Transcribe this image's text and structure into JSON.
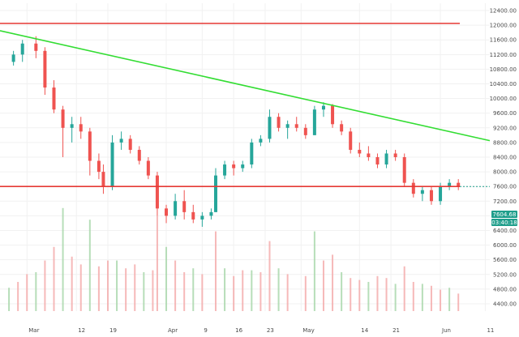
{
  "chart_data": {
    "type": "candlestick",
    "yaxis": {
      "ticks": [
        12400,
        12000,
        11600,
        11200,
        10800,
        10400,
        10000,
        9600,
        9200,
        8800,
        8400,
        8000,
        7600,
        7200,
        6800,
        6400,
        6000,
        5600,
        5200,
        4800,
        4400
      ],
      "tick_labels": [
        "12400.00",
        "12000.00",
        "11600.00",
        "11200.00",
        "10800.00",
        "10400.00",
        "10000.00",
        "9600.00",
        "9200.00",
        "8800.00",
        "8400.00",
        "8000.00",
        "7600.00",
        "7200.00",
        "6800.00",
        "6400.00",
        "6000.00",
        "5600.00",
        "5200.00",
        "4800.00",
        "4400.00"
      ],
      "range": [
        4200,
        12600
      ]
    },
    "xaxis": {
      "tick_labels": [
        "Mar",
        "12",
        "19",
        "Apr",
        "9",
        "16",
        "23",
        "May",
        "14",
        "21",
        "Jun",
        "11"
      ]
    },
    "price_series": [
      [
        "Feb 26",
        11000,
        11300,
        10900,
        11200
      ],
      [
        "Feb 28",
        11200,
        11600,
        11000,
        11500
      ],
      [
        "Mar 3",
        11500,
        11700,
        11100,
        11300
      ],
      [
        "Mar 5",
        11300,
        11400,
        10100,
        10300
      ],
      [
        "Mar 7",
        10300,
        10500,
        9600,
        9700
      ],
      [
        "Mar 9",
        9700,
        9800,
        8400,
        9200
      ],
      [
        "Mar 11",
        9200,
        9500,
        8800,
        9300
      ],
      [
        "Mar 13",
        9300,
        9500,
        8900,
        9100
      ],
      [
        "Mar 15",
        9100,
        9200,
        7900,
        8300
      ],
      [
        "Mar 17",
        8300,
        8500,
        7800,
        8000
      ],
      [
        "Mar 18",
        8000,
        8200,
        7400,
        7600
      ],
      [
        "Mar 20",
        7600,
        9000,
        7500,
        8800
      ],
      [
        "Mar 22",
        8800,
        9100,
        8600,
        8900
      ],
      [
        "Mar 24",
        8900,
        9000,
        8500,
        8600
      ],
      [
        "Mar 26",
        8600,
        8700,
        8200,
        8300
      ],
      [
        "Mar 28",
        8300,
        8400,
        7800,
        7900
      ],
      [
        "Mar 30",
        7900,
        8000,
        6800,
        7000
      ],
      [
        "Apr 1",
        7000,
        7100,
        6600,
        6800
      ],
      [
        "Apr 3",
        6800,
        7400,
        6700,
        7200
      ],
      [
        "Apr 5",
        7200,
        7500,
        6700,
        6900
      ],
      [
        "Apr 7",
        6900,
        7100,
        6600,
        6700
      ],
      [
        "Apr 9",
        6700,
        6900,
        6500,
        6800
      ],
      [
        "Apr 11",
        6800,
        7000,
        6700,
        6900
      ],
      [
        "Apr 12",
        6900,
        8100,
        6900,
        7900
      ],
      [
        "Apr 14",
        7900,
        8300,
        7800,
        8200
      ],
      [
        "Apr 16",
        8200,
        8300,
        7900,
        8100
      ],
      [
        "Apr 18",
        8100,
        8300,
        8000,
        8200
      ],
      [
        "Apr 20",
        8200,
        8900,
        8100,
        8800
      ],
      [
        "Apr 22",
        8800,
        9000,
        8700,
        8900
      ],
      [
        "Apr 24",
        8900,
        9700,
        8800,
        9500
      ],
      [
        "Apr 26",
        9500,
        9600,
        9100,
        9200
      ],
      [
        "Apr 28",
        9200,
        9400,
        8900,
        9300
      ],
      [
        "Apr 30",
        9300,
        9500,
        9100,
        9200
      ],
      [
        "May 2",
        9200,
        9300,
        8900,
        9000
      ],
      [
        "May 4",
        9000,
        9800,
        9000,
        9700
      ],
      [
        "May 6",
        9700,
        9900,
        9500,
        9800
      ],
      [
        "May 8",
        9800,
        9850,
        9200,
        9300
      ],
      [
        "May 10",
        9300,
        9400,
        9000,
        9100
      ],
      [
        "May 12",
        9100,
        9200,
        8500,
        8600
      ],
      [
        "May 14",
        8600,
        8800,
        8400,
        8500
      ],
      [
        "May 16",
        8500,
        8700,
        8300,
        8400
      ],
      [
        "May 18",
        8400,
        8500,
        8100,
        8200
      ],
      [
        "May 20",
        8200,
        8600,
        8100,
        8500
      ],
      [
        "May 22",
        8500,
        8600,
        8300,
        8400
      ],
      [
        "May 24",
        8400,
        8500,
        7600,
        7700
      ],
      [
        "May 26",
        7700,
        7800,
        7300,
        7400
      ],
      [
        "May 28",
        7400,
        7600,
        7200,
        7500
      ],
      [
        "May 30",
        7500,
        7600,
        7100,
        7200
      ],
      [
        "Jun 1",
        7200,
        7700,
        7100,
        7600
      ],
      [
        "Jun 3",
        7600,
        7800,
        7500,
        7700
      ],
      [
        "Jun 5",
        7700,
        7800,
        7500,
        7600
      ]
    ],
    "horizontal_lines": [
      {
        "name": "resistance",
        "value": 12050,
        "color": "#e53935"
      },
      {
        "name": "support",
        "value": 7600,
        "color": "#e53935"
      }
    ],
    "trendline": {
      "from": [
        "Feb 23",
        11850
      ],
      "to": [
        "Jun 12",
        8850
      ],
      "color": "#33dd33"
    },
    "current_price_label": "7604.68",
    "countdown_label": "03:40:18",
    "colors": {
      "up": "#26a69a",
      "down": "#ef5350",
      "volume_up": "#a5d6a7",
      "volume_down": "#f4a7a7",
      "grid": "#f1f1f1",
      "axis_text": "#4a4a4a",
      "current_price_bg": "#1f9e8b"
    },
    "volume_axis_range": [
      0,
      9000
    ],
    "volume_series": [
      [
        "Feb 25",
        1200
      ],
      [
        "Feb 27",
        1500
      ],
      [
        "Mar 1",
        1900
      ],
      [
        "Mar 3",
        2000
      ],
      [
        "Mar 5",
        2600
      ],
      [
        "Mar 7",
        3300
      ],
      [
        "Mar 9",
        5300
      ],
      [
        "Mar 11",
        2800
      ],
      [
        "Mar 13",
        2400
      ],
      [
        "Mar 15",
        4700
      ],
      [
        "Mar 17",
        2300
      ],
      [
        "Mar 19",
        2600
      ],
      [
        "Mar 21",
        2600
      ],
      [
        "Mar 23",
        2200
      ],
      [
        "Mar 25",
        2400
      ],
      [
        "Mar 27",
        2000
      ],
      [
        "Mar 29",
        2100
      ],
      [
        "Mar 30",
        4900
      ],
      [
        "Apr 1",
        3300
      ],
      [
        "Apr 3",
        2600
      ],
      [
        "Apr 5",
        2000
      ],
      [
        "Apr 7",
        2200
      ],
      [
        "Apr 9",
        1900
      ],
      [
        "Apr 12",
        4100
      ],
      [
        "Apr 14",
        2200
      ],
      [
        "Apr 16",
        1800
      ],
      [
        "Apr 18",
        2100
      ],
      [
        "Apr 20",
        2100
      ],
      [
        "Apr 22",
        2000
      ],
      [
        "Apr 24",
        3600
      ],
      [
        "Apr 26",
        2200
      ],
      [
        "Apr 28",
        1900
      ],
      [
        "May 2",
        1800
      ],
      [
        "May 4",
        4100
      ],
      [
        "May 6",
        2600
      ],
      [
        "May 8",
        2900
      ],
      [
        "May 10",
        2000
      ],
      [
        "May 12",
        1700
      ],
      [
        "May 14",
        1600
      ],
      [
        "May 16",
        1500
      ],
      [
        "May 18",
        1800
      ],
      [
        "May 20",
        1700
      ],
      [
        "May 22",
        1400
      ],
      [
        "May 24",
        2300
      ],
      [
        "May 26",
        1500
      ],
      [
        "May 28",
        1400
      ],
      [
        "May 30",
        1300
      ],
      [
        "Jun 1",
        1100
      ],
      [
        "Jun 3",
        1200
      ],
      [
        "Jun 5",
        900
      ]
    ]
  }
}
